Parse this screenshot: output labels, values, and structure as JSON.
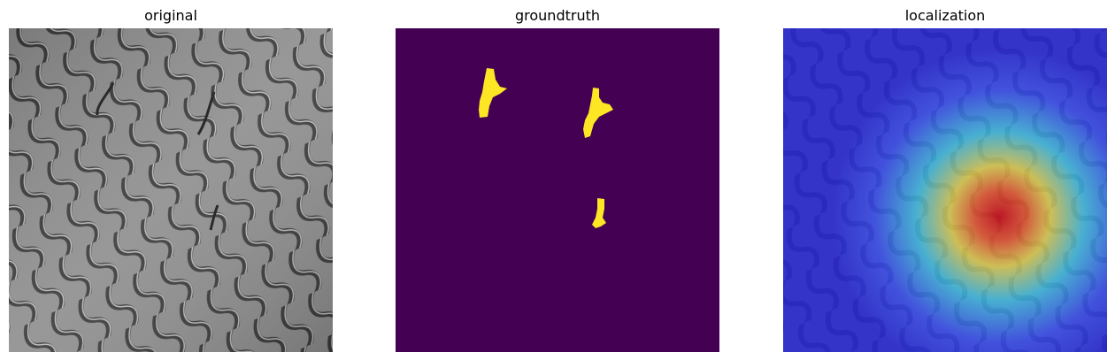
{
  "panels": [
    {
      "title": "original"
    },
    {
      "title": "groundtruth"
    },
    {
      "title": "localization"
    }
  ],
  "colors": {
    "mask_background": "#440154",
    "mask_foreground": "#fde725",
    "texture_base": "#8f8f8f",
    "texture_groove": "#3a3a3a"
  }
}
